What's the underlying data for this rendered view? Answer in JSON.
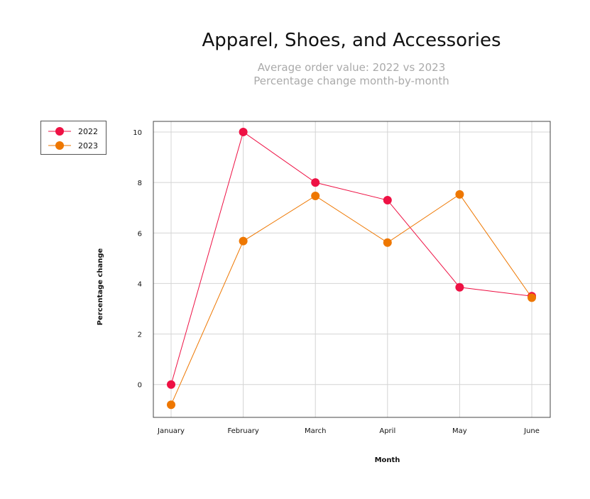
{
  "chart_data": {
    "type": "line",
    "title": "Apparel, Shoes, and Accessories",
    "subtitle": [
      "Average order value: 2022 vs 2023",
      "Percentage change month-by-month"
    ],
    "xlabel": "Month",
    "ylabel": "Percentage change",
    "categories": [
      "January",
      "February",
      "March",
      "April",
      "May",
      "June"
    ],
    "yticks": [
      0,
      2,
      4,
      6,
      8,
      10
    ],
    "ylim": [
      -1.3,
      10.42
    ],
    "grid": true,
    "legend_position": "left",
    "series": [
      {
        "name": "2022",
        "color": "#ee1144",
        "values": [
          0,
          10,
          8,
          7.3,
          3.85,
          3.5
        ]
      },
      {
        "name": "2023",
        "color": "#ee7700",
        "values": [
          -0.8,
          5.68,
          7.47,
          5.62,
          7.53,
          3.44
        ]
      }
    ]
  }
}
